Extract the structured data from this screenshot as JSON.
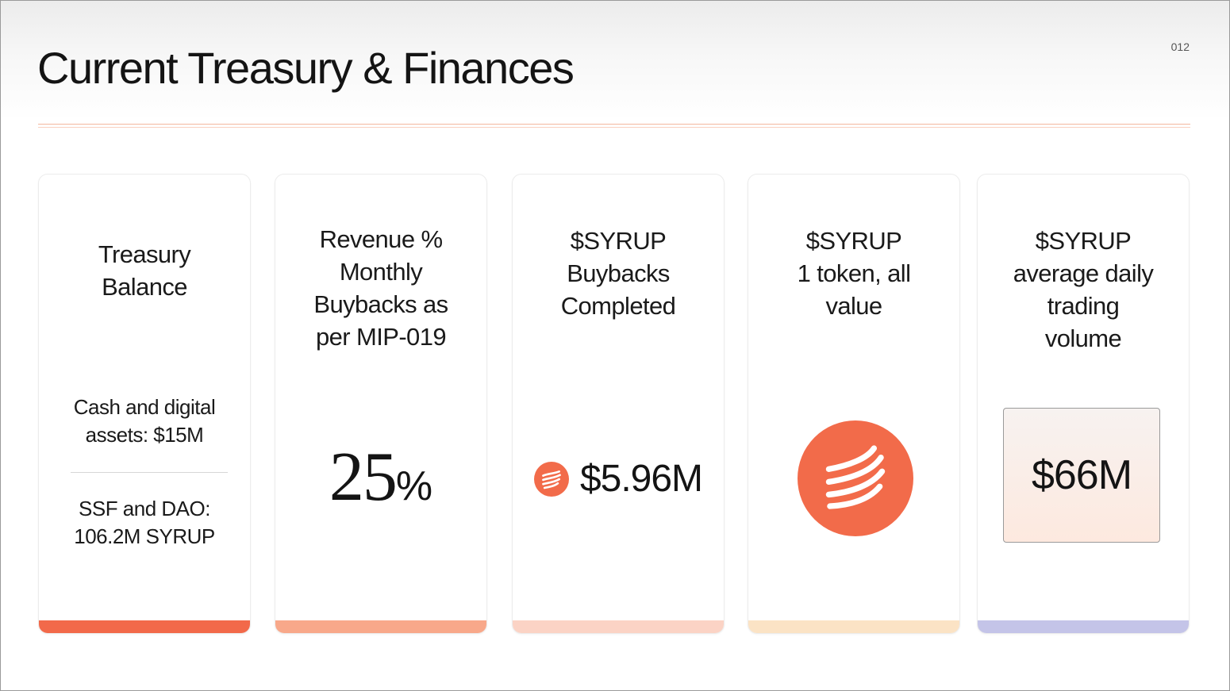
{
  "slide": {
    "title": "Current Treasury & Finances",
    "page_number": "012"
  },
  "cards": [
    {
      "title_lines": [
        "Treasury",
        "Balance"
      ],
      "items": [
        [
          "Cash and digital",
          "assets: $15M"
        ],
        [
          "SSF and DAO:",
          "106.2M SYRUP"
        ]
      ],
      "bar_color": "#f2694a"
    },
    {
      "title_lines": [
        "Revenue %",
        "Monthly",
        "Buybacks as",
        "per MIP-019"
      ],
      "value": "25",
      "unit": "%",
      "bar_color": "#f8a88a"
    },
    {
      "title_lines": [
        "$SYRUP",
        "Buybacks",
        "Completed"
      ],
      "value": "$5.96M",
      "icon": "syrup-logo-icon",
      "bar_color": "#fbd3c5"
    },
    {
      "title_lines": [
        "$SYRUP",
        "1 token, all",
        "value"
      ],
      "icon": "syrup-logo-icon",
      "bar_color": "#fbe3c5"
    },
    {
      "title_lines": [
        "$SYRUP",
        "average daily",
        "trading",
        "volume"
      ],
      "value": "$66M",
      "bar_color": "#c4c4e8"
    }
  ],
  "colors": {
    "accent": "#f26b4a",
    "rule": "#f4b79e"
  }
}
